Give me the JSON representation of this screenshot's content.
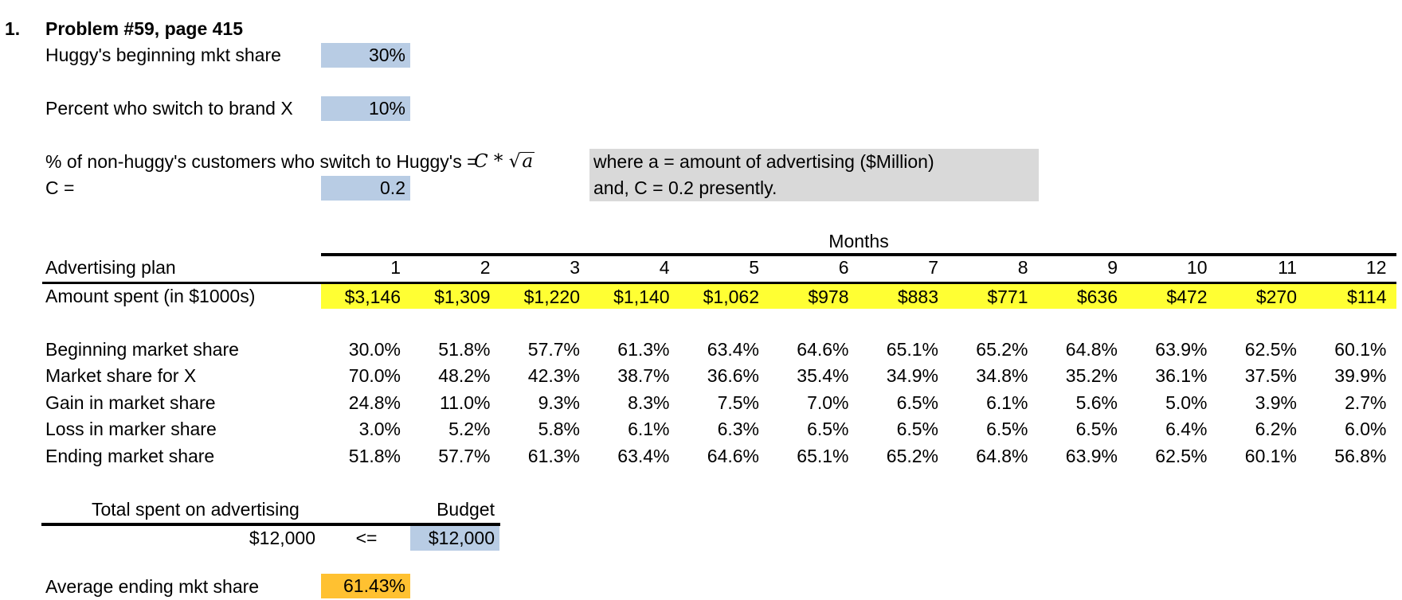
{
  "problem": {
    "number": "1.",
    "title": "Problem #59, page 415"
  },
  "inputs": {
    "beginning_share_label": "Huggy's beginning mkt share",
    "beginning_share_value": "30%",
    "switch_label": "Percent who switch to brand X",
    "switch_value": "10%",
    "nonhuggy_label": "% of non-huggy's customers who switch to Huggy's =",
    "c_label": "C =",
    "c_value": "0.2"
  },
  "formula": {
    "c": "C *",
    "sqrt_symbol": "√",
    "var": "a"
  },
  "note": {
    "line1": "where a = amount of advertising ($Million)",
    "line2": "and, C = 0.2 presently."
  },
  "plan": {
    "months_header": "Months",
    "row_header": "Advertising plan",
    "months": [
      "1",
      "2",
      "3",
      "4",
      "5",
      "6",
      "7",
      "8",
      "9",
      "10",
      "11",
      "12"
    ],
    "amount_label": "Amount spent (in $1000s)",
    "amounts": [
      "$3,146",
      "$1,309",
      "$1,220",
      "$1,140",
      "$1,062",
      "$978",
      "$883",
      "$771",
      "$636",
      "$472",
      "$270",
      "$114"
    ]
  },
  "rows": [
    {
      "label": "Beginning market share",
      "values": [
        "30.0%",
        "51.8%",
        "57.7%",
        "61.3%",
        "63.4%",
        "64.6%",
        "65.1%",
        "65.2%",
        "64.8%",
        "63.9%",
        "62.5%",
        "60.1%"
      ]
    },
    {
      "label": "Market share for X",
      "values": [
        "70.0%",
        "48.2%",
        "42.3%",
        "38.7%",
        "36.6%",
        "35.4%",
        "34.9%",
        "34.8%",
        "35.2%",
        "36.1%",
        "37.5%",
        "39.9%"
      ]
    },
    {
      "label": "Gain in market share",
      "values": [
        "24.8%",
        "11.0%",
        "9.3%",
        "8.3%",
        "7.5%",
        "7.0%",
        "6.5%",
        "6.1%",
        "5.6%",
        "5.0%",
        "3.9%",
        "2.7%"
      ]
    },
    {
      "label": "Loss in marker share",
      "values": [
        "3.0%",
        "5.2%",
        "5.8%",
        "6.1%",
        "6.3%",
        "6.5%",
        "6.5%",
        "6.5%",
        "6.5%",
        "6.4%",
        "6.2%",
        "6.0%"
      ]
    },
    {
      "label": "Ending market share",
      "values": [
        "51.8%",
        "57.7%",
        "61.3%",
        "63.4%",
        "64.6%",
        "65.1%",
        "65.2%",
        "64.8%",
        "63.9%",
        "62.5%",
        "60.1%",
        "56.8%"
      ]
    }
  ],
  "budget": {
    "total_label": "Total spent on advertising",
    "budget_label": "Budget",
    "total_value": "$12,000",
    "operator": "<=",
    "budget_value": "$12,000"
  },
  "result": {
    "label": "Average ending mkt share",
    "value": "61.43%"
  },
  "colors": {
    "input_blue": "#b8cce4",
    "highlight_yellow": "#ffff33",
    "result_orange": "#ffc131",
    "note_gray": "#d9d9d9"
  }
}
